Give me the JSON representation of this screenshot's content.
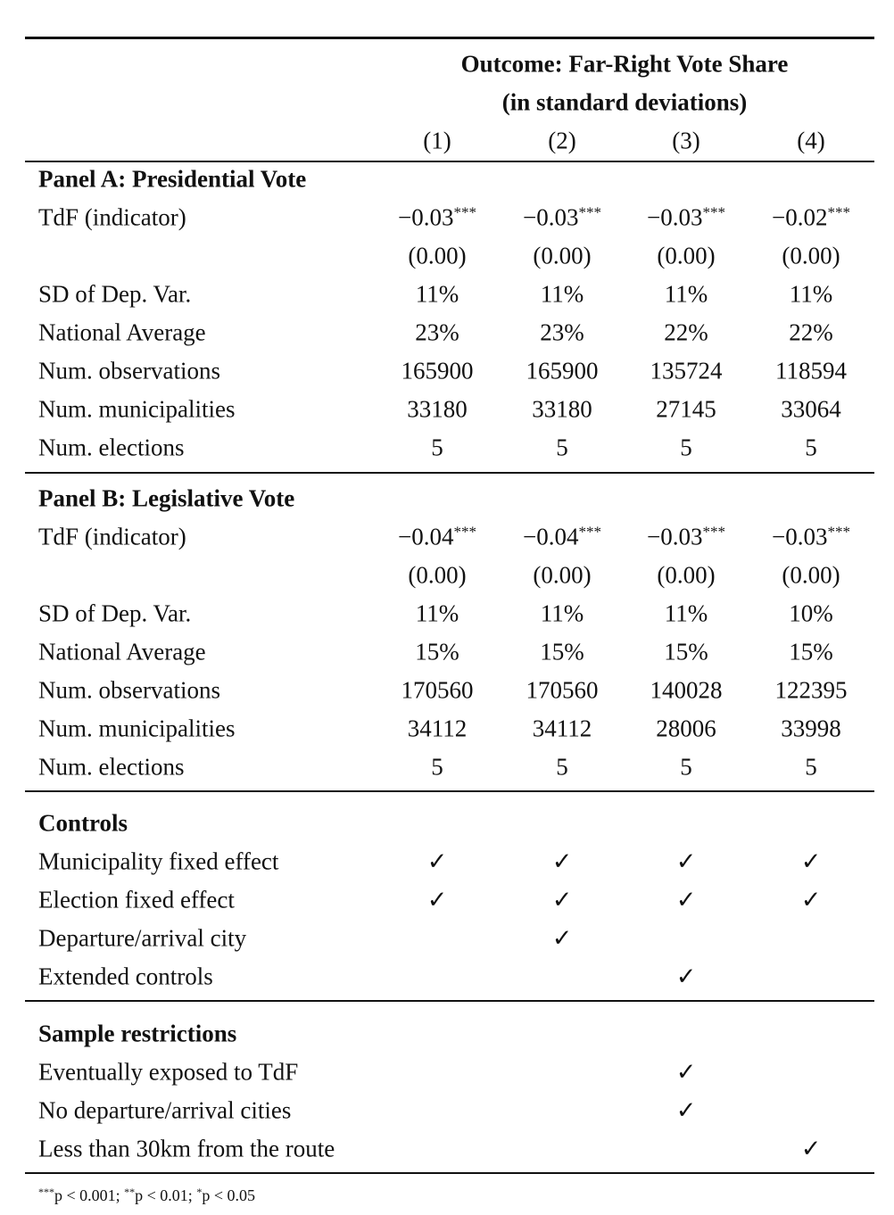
{
  "header": {
    "title_lines": [
      "Outcome: Far-Right Vote Share",
      "(in standard deviations)"
    ],
    "columns": [
      "(1)",
      "(2)",
      "(3)",
      "(4)"
    ]
  },
  "sections": [
    {
      "title": "Panel A: Presidential Vote",
      "rows": [
        {
          "label": "TdF (indicator)",
          "cells": [
            {
              "coef": "−0.03",
              "stars": "***"
            },
            {
              "coef": "−0.03",
              "stars": "***"
            },
            {
              "coef": "−0.03",
              "stars": "***"
            },
            {
              "coef": "−0.02",
              "stars": "***"
            }
          ]
        },
        {
          "cells": [
            "(0.00)",
            "(0.00)",
            "(0.00)",
            "(0.00)"
          ]
        },
        {
          "label": "SD of Dep. Var.",
          "cells": [
            "11%",
            "11%",
            "11%",
            "11%"
          ]
        },
        {
          "label": "National Average",
          "cells": [
            "23%",
            "23%",
            "22%",
            "22%"
          ]
        },
        {
          "label": "Num. observations",
          "cells": [
            "165900",
            "165900",
            "135724",
            "118594"
          ]
        },
        {
          "label": "Num. municipalities",
          "cells": [
            "33180",
            "33180",
            "27145",
            "33064"
          ]
        },
        {
          "label": "Num. elections",
          "cells": [
            "5",
            "5",
            "5",
            "5"
          ]
        }
      ]
    },
    {
      "title": "Panel B: Legislative Vote",
      "rows": [
        {
          "label": "TdF (indicator)",
          "cells": [
            {
              "coef": "−0.04",
              "stars": "***"
            },
            {
              "coef": "−0.04",
              "stars": "***"
            },
            {
              "coef": "−0.03",
              "stars": "***"
            },
            {
              "coef": "−0.03",
              "stars": "***"
            }
          ]
        },
        {
          "cells": [
            "(0.00)",
            "(0.00)",
            "(0.00)",
            "(0.00)"
          ]
        },
        {
          "label": "SD of Dep. Var.",
          "cells": [
            "11%",
            "11%",
            "11%",
            "10%"
          ]
        },
        {
          "label": "National Average",
          "cells": [
            "15%",
            "15%",
            "15%",
            "15%"
          ]
        },
        {
          "label": "Num. observations",
          "cells": [
            "170560",
            "170560",
            "140028",
            "122395"
          ]
        },
        {
          "label": "Num. municipalities",
          "cells": [
            "34112",
            "34112",
            "28006",
            "33998"
          ]
        },
        {
          "label": "Num. elections",
          "cells": [
            "5",
            "5",
            "5",
            "5"
          ]
        }
      ]
    },
    {
      "title": "Controls",
      "rows": [
        {
          "label": "Municipality fixed effect",
          "cells": [
            "✓",
            "✓",
            "✓",
            "✓"
          ]
        },
        {
          "label": "Election fixed effect",
          "cells": [
            "✓",
            "✓",
            "✓",
            "✓"
          ]
        },
        {
          "label": "Departure/arrival city",
          "cells": [
            null,
            "✓",
            null,
            null
          ]
        },
        {
          "label": "Extended controls",
          "cells": [
            null,
            null,
            "✓",
            null
          ]
        }
      ]
    },
    {
      "title": "Sample restrictions",
      "rows": [
        {
          "label": "Eventually exposed to TdF",
          "cells": [
            null,
            null,
            "✓",
            null
          ]
        },
        {
          "label": "No departure/arrival cities",
          "cells": [
            null,
            null,
            "✓",
            null
          ]
        },
        {
          "label": "Less than 30km from the route",
          "cells": [
            null,
            null,
            null,
            "✓"
          ]
        }
      ]
    }
  ],
  "footnote": [
    {
      "stars": "***",
      "text": "p < 0.001;"
    },
    {
      "stars": "**",
      "text": "p < 0.01;"
    },
    {
      "stars": "*",
      "text": "p < 0.05"
    }
  ]
}
